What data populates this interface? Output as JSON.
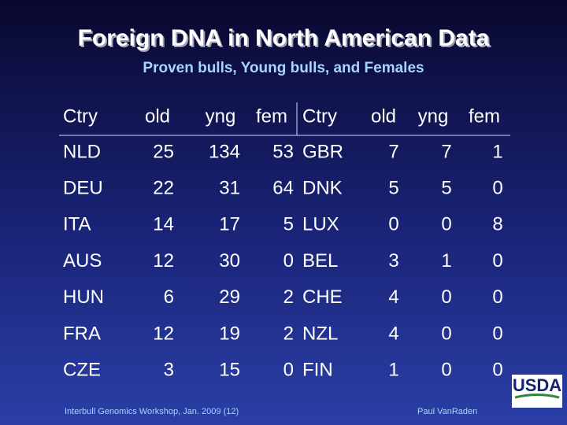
{
  "header": {
    "title": "Foreign DNA in North American Data",
    "subtitle": "Proven bulls, Young bulls, and Females"
  },
  "table": {
    "headers": [
      "Ctry",
      "old",
      "yng",
      "fem",
      "Ctry",
      "old",
      "yng",
      "fem"
    ],
    "rows": [
      [
        "NLD",
        25,
        134,
        53,
        "GBR",
        7,
        7,
        1
      ],
      [
        "DEU",
        22,
        31,
        64,
        "DNK",
        5,
        5,
        0
      ],
      [
        "ITA",
        14,
        17,
        5,
        "LUX",
        0,
        0,
        8
      ],
      [
        "AUS",
        12,
        30,
        0,
        "BEL",
        3,
        1,
        0
      ],
      [
        "HUN",
        6,
        29,
        2,
        "CHE",
        4,
        0,
        0
      ],
      [
        "FRA",
        12,
        19,
        2,
        "NZL",
        4,
        0,
        0
      ],
      [
        "CZE",
        3,
        15,
        0,
        "FIN",
        1,
        0,
        0
      ]
    ]
  },
  "footer": {
    "left": "Interbull Genomics Workshop, Jan. 2009 (12)",
    "right": "Paul VanRaden"
  },
  "logo": {
    "text": "USDA"
  }
}
